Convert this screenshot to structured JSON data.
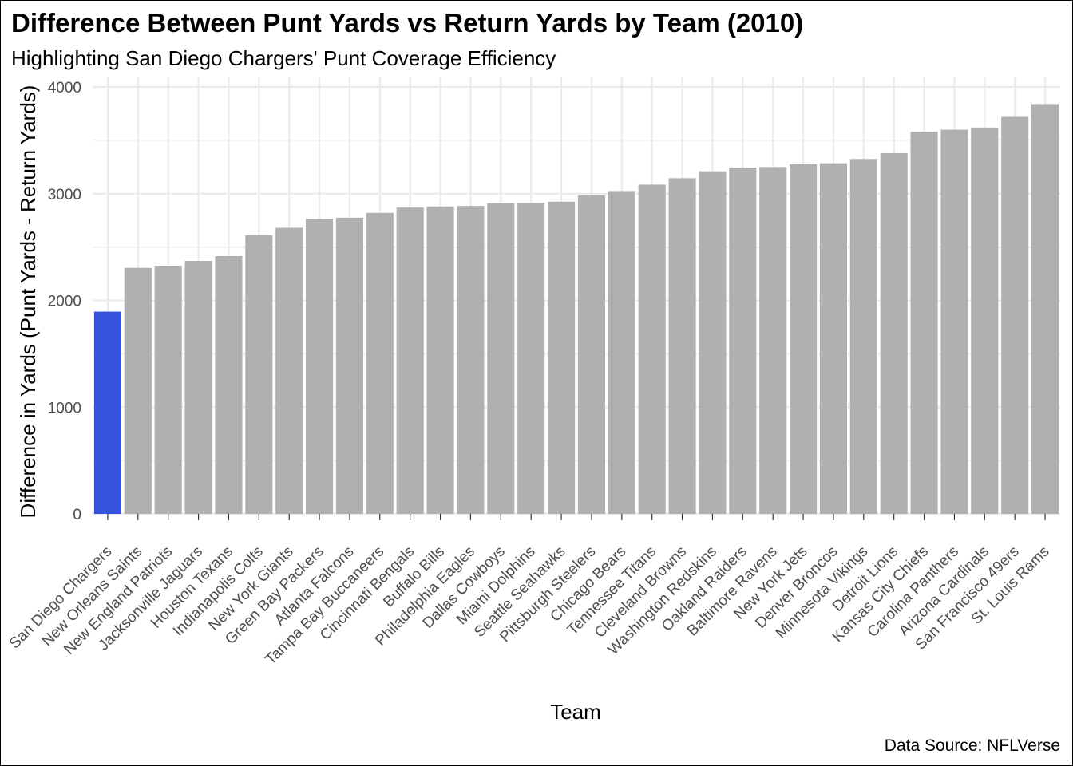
{
  "chart_data": {
    "type": "bar",
    "title": "Difference Between Punt Yards vs Return Yards by Team (2010)",
    "subtitle": "Highlighting San Diego Chargers' Punt Coverage Efficiency",
    "xlabel": "Team",
    "ylabel": "Difference in Yards (Punt Yards - Return Yards)",
    "caption": "Data Source: NFLVerse",
    "ylim": [
      0,
      4000
    ],
    "yticks": [
      0,
      1000,
      2000,
      3000,
      4000
    ],
    "grid": true,
    "highlight_color": "#3452db",
    "bar_color": "#b0b0b0",
    "grid_color": "#ebebeb",
    "categories": [
      "San Diego Chargers",
      "New Orleans Saints",
      "New England Patriots",
      "Jacksonville Jaguars",
      "Houston Texans",
      "Indianapolis Colts",
      "New York Giants",
      "Green Bay Packers",
      "Atlanta Falcons",
      "Tampa Bay Buccaneers",
      "Cincinnati Bengals",
      "Buffalo Bills",
      "Philadelphia Eagles",
      "Dallas Cowboys",
      "Miami Dolphins",
      "Seattle Seahawks",
      "Pittsburgh Steelers",
      "Chicago Bears",
      "Tennessee Titans",
      "Cleveland Browns",
      "Washington Redskins",
      "Oakland Raiders",
      "Baltimore Ravens",
      "New York Jets",
      "Denver Broncos",
      "Minnesota Vikings",
      "Detroit Lions",
      "Kansas City Chiefs",
      "Carolina Panthers",
      "Arizona Cardinals",
      "San Francisco 49ers",
      "St. Louis Rams"
    ],
    "values": [
      1895,
      2305,
      2325,
      2370,
      2415,
      2610,
      2680,
      2765,
      2775,
      2820,
      2870,
      2880,
      2885,
      2910,
      2915,
      2925,
      2985,
      3025,
      3085,
      3145,
      3210,
      3245,
      3250,
      3275,
      3285,
      3325,
      3380,
      3580,
      3600,
      3620,
      3720,
      3840
    ],
    "highlighted": [
      "San Diego Chargers"
    ]
  }
}
